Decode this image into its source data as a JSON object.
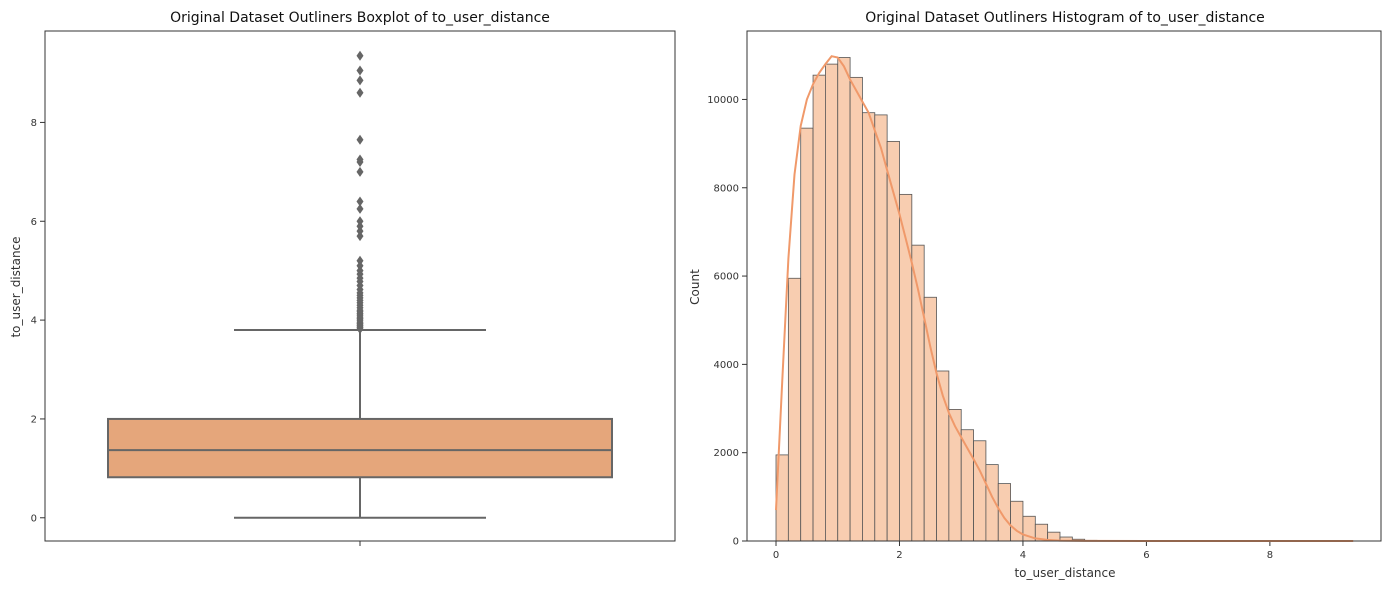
{
  "chart_data": [
    {
      "type": "box",
      "title": "Original Dataset Outliners Boxplot of to_user_distance",
      "ylabel": "to_user_distance",
      "xlabel": "",
      "ylim": [
        -0.47,
        9.85
      ],
      "yticks": [
        0,
        2,
        4,
        6,
        8
      ],
      "color": "#e5a67b",
      "line_color": "#666666",
      "box": {
        "whisker_low": 0.0,
        "q1": 0.82,
        "median": 1.37,
        "q3": 2.0,
        "whisker_high": 3.8
      },
      "outliers": [
        3.82,
        3.85,
        3.88,
        3.9,
        3.93,
        3.96,
        4.0,
        4.03,
        4.06,
        4.1,
        4.13,
        4.17,
        4.2,
        4.25,
        4.3,
        4.35,
        4.4,
        4.45,
        4.5,
        4.55,
        4.62,
        4.7,
        4.78,
        4.85,
        4.93,
        5.0,
        5.1,
        5.2,
        5.7,
        5.8,
        5.9,
        6.0,
        6.25,
        6.4,
        7.0,
        7.2,
        7.25,
        7.65,
        8.6,
        8.85,
        9.05,
        9.35
      ]
    },
    {
      "type": "histogram",
      "title": "Original Dataset Outliners Histogram of to_user_distance",
      "xlabel": "to_user_distance",
      "ylabel": "Count",
      "xlim": [
        -0.47,
        9.8
      ],
      "ylim": [
        0,
        11550
      ],
      "xticks": [
        0,
        2,
        4,
        6,
        8
      ],
      "yticks": [
        0,
        2000,
        4000,
        6000,
        8000,
        10000
      ],
      "bin_width": 0.2,
      "bin_start": 0,
      "bar_color": "#f8cdb0",
      "edge_color": "#555555",
      "kde_color": "#f0996a",
      "counts": [
        1950,
        5950,
        9350,
        10550,
        10800,
        10950,
        10500,
        9700,
        9650,
        9050,
        7850,
        6700,
        5520,
        3850,
        2980,
        2520,
        2270,
        1730,
        1300,
        900,
        560,
        380,
        200,
        90,
        40,
        15,
        6,
        3,
        2,
        1,
        1,
        1,
        1,
        1,
        1,
        1,
        1,
        1,
        1,
        1,
        1,
        1,
        1,
        1,
        1,
        1,
        1
      ],
      "kde": [
        [
          0,
          700
        ],
        [
          0.1,
          3600
        ],
        [
          0.2,
          6400
        ],
        [
          0.3,
          8300
        ],
        [
          0.4,
          9400
        ],
        [
          0.5,
          10000
        ],
        [
          0.6,
          10350
        ],
        [
          0.7,
          10600
        ],
        [
          0.8,
          10800
        ],
        [
          0.9,
          10980
        ],
        [
          1.0,
          10950
        ],
        [
          1.1,
          10750
        ],
        [
          1.2,
          10450
        ],
        [
          1.3,
          10200
        ],
        [
          1.4,
          9950
        ],
        [
          1.5,
          9700
        ],
        [
          1.6,
          9300
        ],
        [
          1.7,
          8900
        ],
        [
          1.8,
          8400
        ],
        [
          1.9,
          7900
        ],
        [
          2.0,
          7400
        ],
        [
          2.1,
          6850
        ],
        [
          2.2,
          6300
        ],
        [
          2.3,
          5700
        ],
        [
          2.4,
          5050
        ],
        [
          2.5,
          4400
        ],
        [
          2.6,
          3800
        ],
        [
          2.7,
          3300
        ],
        [
          2.8,
          2900
        ],
        [
          2.9,
          2600
        ],
        [
          3.0,
          2350
        ],
        [
          3.1,
          2100
        ],
        [
          3.2,
          1850
        ],
        [
          3.3,
          1600
        ],
        [
          3.4,
          1300
        ],
        [
          3.5,
          1000
        ],
        [
          3.6,
          740
        ],
        [
          3.7,
          520
        ],
        [
          3.8,
          350
        ],
        [
          3.9,
          230
        ],
        [
          4.0,
          150
        ],
        [
          4.2,
          60
        ],
        [
          4.4,
          25
        ],
        [
          4.6,
          10
        ],
        [
          5.0,
          3
        ],
        [
          6.0,
          1
        ],
        [
          7.0,
          0
        ],
        [
          8.0,
          0
        ],
        [
          9.35,
          0
        ]
      ]
    }
  ]
}
